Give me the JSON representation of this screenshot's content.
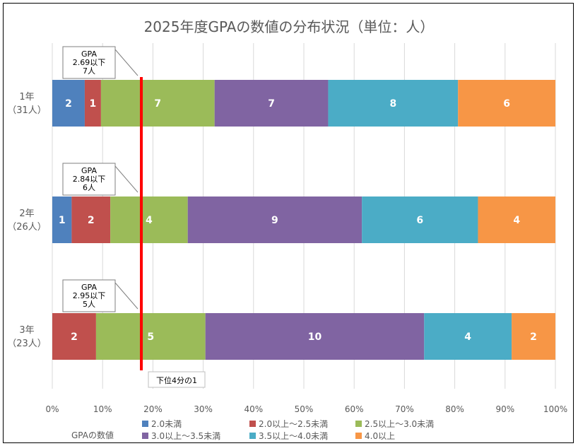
{
  "chart_data": {
    "type": "bar",
    "orientation": "horizontal",
    "stacked": true,
    "percent_stacked": true,
    "title": "2025年度GPAの数値の分布状況（単位：人）",
    "categories": [
      {
        "line1": "1年",
        "line2": "（31人）"
      },
      {
        "line1": "2年",
        "line2": "（26人）"
      },
      {
        "line1": "3年",
        "line2": "（23人）"
      }
    ],
    "series": [
      {
        "name": "2.0未満",
        "color": "#4f81bd",
        "values": [
          2,
          1,
          0
        ]
      },
      {
        "name": "2.0以上～2.5未満",
        "color": "#c0504d",
        "values": [
          1,
          2,
          2
        ]
      },
      {
        "name": "2.5以上～3.0未満",
        "color": "#9bbb59",
        "values": [
          7,
          4,
          5
        ]
      },
      {
        "name": "3.0以上～3.5未満",
        "color": "#8064a2",
        "values": [
          7,
          9,
          10
        ]
      },
      {
        "name": "3.5以上～4.0未満",
        "color": "#4bacc6",
        "values": [
          8,
          6,
          4
        ]
      },
      {
        "name": "4.0以上",
        "color": "#f79646",
        "values": [
          6,
          4,
          2
        ]
      }
    ],
    "xlim": [
      0,
      100
    ],
    "x_ticks": [
      "0%",
      "10%",
      "20%",
      "30%",
      "40%",
      "50%",
      "60%",
      "70%",
      "80%",
      "90%",
      "100%"
    ],
    "legend_title": "GPAの数値",
    "legend_position": "bottom",
    "reference_line": {
      "value": 17.7,
      "label": "下位4分の1",
      "color": "#ff0000"
    },
    "annotations": [
      {
        "lines": [
          "GPA",
          "2.69以下",
          "7人"
        ]
      },
      {
        "lines": [
          "GPA",
          "2.84以下",
          "6人"
        ]
      },
      {
        "lines": [
          "GPA",
          "2.95以下",
          "5人"
        ]
      }
    ]
  }
}
